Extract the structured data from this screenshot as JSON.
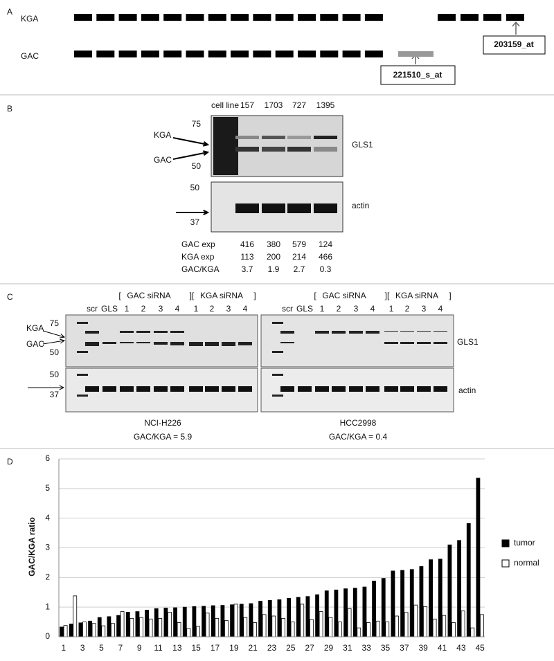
{
  "panel_a": {
    "label": "A",
    "rows": [
      "KGA",
      "GAC"
    ],
    "probes": [
      "203159_at",
      "221510_s_at"
    ]
  },
  "panel_b": {
    "label": "B",
    "header": "cell line",
    "cell_lines": [
      "157",
      "1703",
      "727",
      "1395"
    ],
    "gls1_markers": [
      "75",
      "50"
    ],
    "arrows": [
      "KGA",
      "GAC"
    ],
    "gls1_label": "GLS1",
    "actin_markers": [
      "50",
      "37"
    ],
    "actin_label": "actin",
    "table": {
      "rows": [
        {
          "label": "GAC exp",
          "values": [
            416,
            380,
            579,
            124
          ]
        },
        {
          "label": "KGA exp",
          "values": [
            113,
            200,
            214,
            466
          ]
        },
        {
          "label": "GAC/KGA",
          "values": [
            3.7,
            1.9,
            2.7,
            0.3
          ]
        }
      ]
    }
  },
  "panel_c": {
    "label": "C",
    "arrows": [
      "KGA",
      "GAC"
    ],
    "gls1_markers": [
      "75",
      "50"
    ],
    "actin_markers": [
      "50",
      "37"
    ],
    "gls1_label": "GLS1",
    "actin_label": "actin",
    "blots": [
      {
        "groups": [
          "[",
          "GAC siRNA",
          "][",
          "KGA siRNA",
          "]"
        ],
        "lanes": [
          "scr",
          "GLS",
          "1",
          "2",
          "3",
          "4",
          "1",
          "2",
          "3",
          "4"
        ],
        "cell_line": "NCI-H226",
        "ratio": "GAC/KGA = 5.9"
      },
      {
        "groups": [
          "[",
          "GAC siRNA",
          "][",
          "KGA siRNA",
          "]"
        ],
        "lanes": [
          "scr",
          "GLS",
          "1",
          "2",
          "3",
          "4",
          "1",
          "2",
          "3",
          "4"
        ],
        "cell_line": "HCC2998",
        "ratio": "GAC/KGA = 0.4"
      }
    ]
  },
  "chart_data": {
    "type": "bar",
    "panel_label": "D",
    "y_label": "GAC/KGA ratio",
    "categories": [
      1,
      null,
      3,
      null,
      5,
      null,
      7,
      null,
      9,
      null,
      11,
      null,
      13,
      null,
      15,
      null,
      17,
      null,
      19,
      null,
      21,
      null,
      23,
      null,
      25,
      null,
      27,
      null,
      29,
      null,
      31,
      null,
      33,
      null,
      35,
      null,
      37,
      null,
      39,
      null,
      41,
      null,
      43,
      null,
      45
    ],
    "series": [
      {
        "name": "tumor",
        "color": "#000000",
        "values": [
          0.33,
          0.43,
          0.47,
          0.53,
          0.65,
          0.68,
          0.72,
          0.83,
          0.85,
          0.9,
          0.95,
          0.97,
          0.98,
          1.0,
          1.02,
          1.03,
          1.05,
          1.06,
          1.08,
          1.1,
          1.12,
          1.2,
          1.23,
          1.25,
          1.3,
          1.33,
          1.36,
          1.42,
          1.55,
          1.58,
          1.62,
          1.64,
          1.68,
          1.88,
          1.97,
          2.22,
          2.24,
          2.27,
          2.37,
          2.6,
          2.62,
          3.1,
          3.25,
          3.82,
          5.35
        ]
      },
      {
        "name": "normal",
        "color": "#ffffff",
        "values": [
          0.38,
          1.38,
          0.5,
          0.45,
          0.37,
          0.45,
          0.85,
          0.62,
          0.65,
          0.6,
          0.62,
          0.83,
          0.48,
          0.28,
          0.35,
          0.8,
          0.62,
          0.55,
          1.1,
          0.65,
          0.48,
          0.75,
          0.7,
          0.62,
          0.5,
          1.1,
          0.58,
          0.85,
          0.65,
          0.5,
          0.95,
          0.3,
          0.48,
          0.53,
          0.5,
          0.7,
          0.82,
          1.07,
          1.02,
          0.6,
          0.72,
          0.48,
          0.87,
          0.3,
          0.75
        ]
      }
    ],
    "ylim": [
      0,
      6
    ],
    "yticks": [
      0,
      1,
      2,
      3,
      4,
      5,
      6
    ],
    "grid": true,
    "legend": "right"
  }
}
